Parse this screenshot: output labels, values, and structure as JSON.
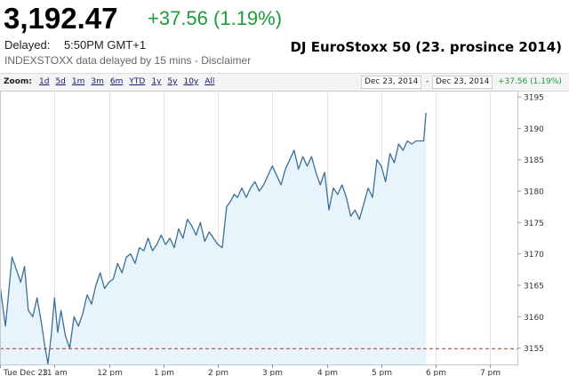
{
  "header": {
    "price": "3,192.47",
    "change": "+37.56 (1.19%)",
    "delayed_label": "Delayed:",
    "delayed_time": "5:50PM GMT+1",
    "disclaimer_prefix": "INDEXSTOXX data delayed by 15 mins - ",
    "disclaimer_link": "Disclaimer",
    "caption": "DJ EuroStoxx 50 (23. prosince 2014)"
  },
  "toolbar": {
    "zoom_label": "Zoom:",
    "zoom_options": [
      "1d",
      "5d",
      "1m",
      "3m",
      "6m",
      "YTD",
      "1y",
      "5y",
      "10y",
      "All"
    ],
    "date_from": "Dec 23, 2014",
    "date_separator": "-",
    "date_to": "Dec 23, 2014",
    "range_change": "+37.56 (1.19%)"
  },
  "colors": {
    "line": "#3d6f96",
    "fill": "#e8f4fb",
    "positive": "#1c9b3a",
    "reference_line": "#a0322d"
  },
  "chart_data": {
    "type": "area",
    "title": "",
    "xlabel": "",
    "ylabel": "",
    "ylim": [
      3152.4,
      3196
    ],
    "xlim": [
      10.0,
      19.5
    ],
    "x_ticks": [
      {
        "value": 10.0,
        "label": "Tue Dec 23"
      },
      {
        "value": 11.0,
        "label": "11 am"
      },
      {
        "value": 12.0,
        "label": "12 pm"
      },
      {
        "value": 13.0,
        "label": "1 pm"
      },
      {
        "value": 14.0,
        "label": "2 pm"
      },
      {
        "value": 15.0,
        "label": "3 pm"
      },
      {
        "value": 16.0,
        "label": "4 pm"
      },
      {
        "value": 17.0,
        "label": "5 pm"
      },
      {
        "value": 18.0,
        "label": "6 pm"
      },
      {
        "value": 19.0,
        "label": "7 pm"
      }
    ],
    "y_ticks": [
      {
        "value": 3155,
        "label": "3155"
      },
      {
        "value": 3160,
        "label": "3160"
      },
      {
        "value": 3165,
        "label": "3165"
      },
      {
        "value": 3170,
        "label": "3170"
      },
      {
        "value": 3175,
        "label": "3175"
      },
      {
        "value": 3180,
        "label": "3180"
      },
      {
        "value": 3185,
        "label": "3185"
      },
      {
        "value": 3190,
        "label": "3190"
      },
      {
        "value": 3195,
        "label": "3195"
      }
    ],
    "reference_line": {
      "value": 3154.91,
      "style": "dashed"
    },
    "grid": "vertical",
    "series": [
      {
        "x": [
          10.0,
          10.1,
          10.15,
          10.22,
          10.3,
          10.38,
          10.45,
          10.52,
          10.6,
          10.68,
          10.76,
          10.82,
          10.88,
          10.94,
          11.0,
          11.06,
          11.12,
          11.2,
          11.28,
          11.36,
          11.44,
          11.52,
          11.6,
          11.68,
          11.76,
          11.84,
          11.92,
          12.0,
          12.08,
          12.16,
          12.24,
          12.32,
          12.4,
          12.48,
          12.56,
          12.64,
          12.72,
          12.8,
          12.88,
          12.96,
          13.04,
          13.12,
          13.2,
          13.28,
          13.36,
          13.44,
          13.52,
          13.6,
          13.68,
          13.76,
          13.84,
          13.92,
          14.0,
          14.08,
          14.16,
          14.24,
          14.3,
          14.36,
          14.44,
          14.52,
          14.6,
          14.68,
          14.76,
          14.84,
          14.92,
          15.0,
          15.08,
          15.16,
          15.24,
          15.32,
          15.4,
          15.48,
          15.56,
          15.64,
          15.72,
          15.8,
          15.88,
          15.96,
          16.04,
          16.12,
          16.2,
          16.28,
          16.36,
          16.44,
          16.52,
          16.6,
          16.68,
          16.76,
          16.84,
          16.92,
          17.0,
          17.08,
          17.16,
          17.24,
          17.32,
          17.4,
          17.48,
          17.56,
          17.64,
          17.72,
          17.78,
          17.82
        ],
        "values": [
          3165.0,
          3158.5,
          3163.0,
          3169.5,
          3167.5,
          3165.5,
          3168.0,
          3161.0,
          3160.0,
          3163.0,
          3159.0,
          3155.5,
          3152.5,
          3157.0,
          3163.0,
          3157.5,
          3161.0,
          3157.0,
          3155.0,
          3160.0,
          3158.5,
          3160.5,
          3163.5,
          3162.0,
          3165.0,
          3167.0,
          3164.5,
          3165.5,
          3166.0,
          3168.5,
          3167.0,
          3169.5,
          3170.0,
          3168.5,
          3171.0,
          3170.5,
          3172.5,
          3170.5,
          3171.5,
          3173.0,
          3171.5,
          3172.5,
          3171.0,
          3174.0,
          3172.5,
          3175.5,
          3174.5,
          3173.0,
          3175.0,
          3172.0,
          3173.5,
          3172.5,
          3171.5,
          3171.0,
          3177.5,
          3178.5,
          3179.5,
          3179.0,
          3180.5,
          3179.0,
          3180.5,
          3181.5,
          3180.0,
          3181.0,
          3182.5,
          3184.0,
          3182.5,
          3181.0,
          3183.5,
          3185.0,
          3186.5,
          3183.5,
          3185.5,
          3184.0,
          3185.5,
          3183.0,
          3181.0,
          3183.0,
          3177.0,
          3180.5,
          3179.5,
          3181.0,
          3179.0,
          3176.0,
          3177.0,
          3175.5,
          3178.0,
          3180.5,
          3179.0,
          3185.0,
          3184.0,
          3181.5,
          3186.0,
          3184.5,
          3187.5,
          3186.5,
          3188.0,
          3187.5,
          3188.0,
          3188.0,
          3188.0,
          3192.47
        ]
      }
    ]
  }
}
